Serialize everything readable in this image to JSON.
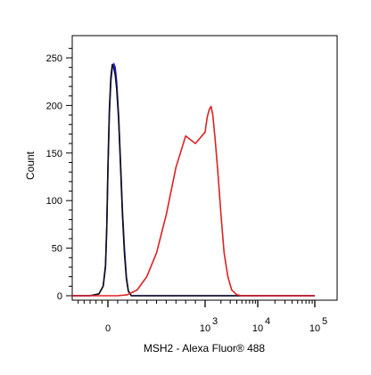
{
  "chart_data": {
    "type": "line",
    "xlabel": "MSH2 - Alexa Fluor® 488",
    "ylabel": "Count",
    "x_scale": "biexponential",
    "x_ticks": [
      "0",
      "10",
      "10",
      "10"
    ],
    "x_tick_exponents": [
      "",
      "3",
      "4",
      "5"
    ],
    "x_tick_values": [
      0,
      1000,
      10000,
      100000
    ],
    "ylim": [
      0,
      260
    ],
    "y_ticks": [
      0,
      50,
      100,
      150,
      200,
      250
    ],
    "grid": false,
    "series": [
      {
        "color": "#1a1aff",
        "points": [
          [
            -600,
            0
          ],
          [
            -300,
            0
          ],
          [
            -150,
            2
          ],
          [
            -80,
            10
          ],
          [
            -40,
            30
          ],
          [
            -20,
            70
          ],
          [
            0,
            130
          ],
          [
            15,
            190
          ],
          [
            30,
            225
          ],
          [
            45,
            240
          ],
          [
            60,
            244
          ],
          [
            75,
            240
          ],
          [
            90,
            225
          ],
          [
            110,
            190
          ],
          [
            130,
            140
          ],
          [
            150,
            90
          ],
          [
            170,
            50
          ],
          [
            190,
            20
          ],
          [
            210,
            5
          ],
          [
            240,
            0
          ],
          [
            100000,
            0
          ]
        ]
      },
      {
        "color": "#111111",
        "points": [
          [
            -600,
            0
          ],
          [
            -300,
            0
          ],
          [
            -150,
            2
          ],
          [
            -80,
            10
          ],
          [
            -40,
            32
          ],
          [
            -20,
            72
          ],
          [
            0,
            135
          ],
          [
            15,
            195
          ],
          [
            30,
            230
          ],
          [
            45,
            243
          ],
          [
            60,
            240
          ],
          [
            75,
            232
          ],
          [
            90,
            218
          ],
          [
            110,
            185
          ],
          [
            130,
            135
          ],
          [
            150,
            85
          ],
          [
            170,
            45
          ],
          [
            190,
            18
          ],
          [
            210,
            5
          ],
          [
            240,
            0
          ],
          [
            100000,
            0
          ]
        ]
      },
      {
        "color": "#dd2222",
        "points": [
          [
            -600,
            0
          ],
          [
            100,
            0
          ],
          [
            200,
            1
          ],
          [
            300,
            6
          ],
          [
            400,
            20
          ],
          [
            500,
            45
          ],
          [
            600,
            85
          ],
          [
            700,
            135
          ],
          [
            800,
            168
          ],
          [
            900,
            160
          ],
          [
            1000,
            172
          ],
          [
            1100,
            188
          ],
          [
            1200,
            196
          ],
          [
            1300,
            199
          ],
          [
            1400,
            190
          ],
          [
            1550,
            165
          ],
          [
            1750,
            130
          ],
          [
            2000,
            85
          ],
          [
            2300,
            45
          ],
          [
            2700,
            20
          ],
          [
            3200,
            6
          ],
          [
            4000,
            1
          ],
          [
            5000,
            0
          ],
          [
            100000,
            0
          ]
        ]
      }
    ]
  }
}
